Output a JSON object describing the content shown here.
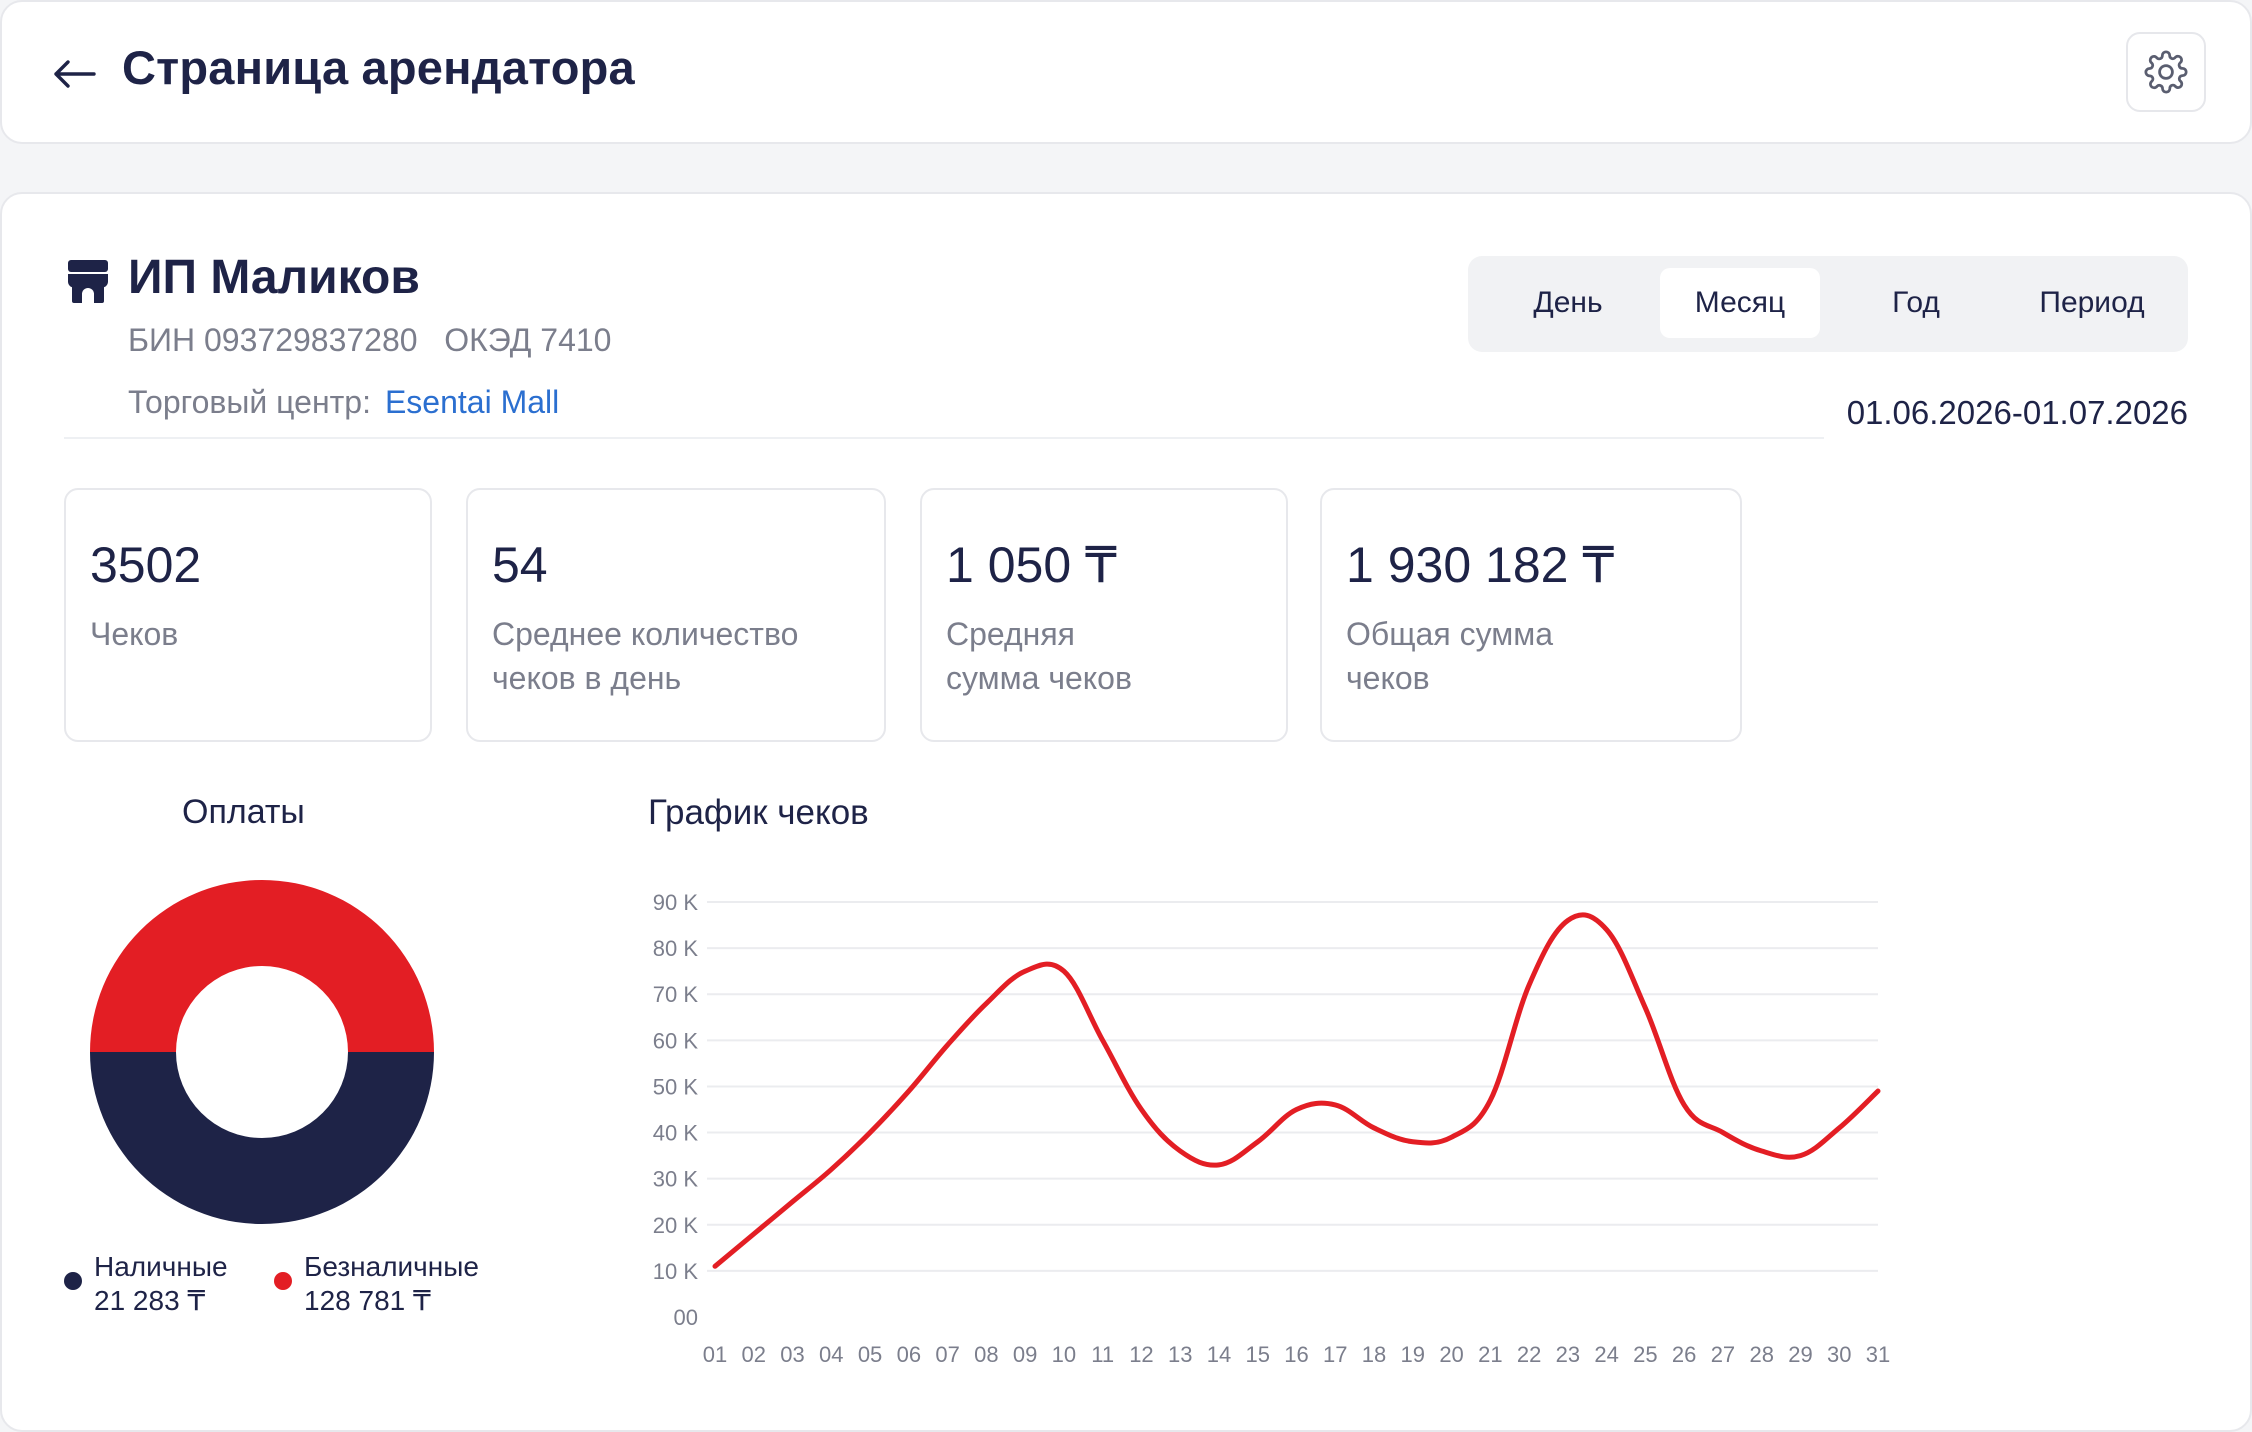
{
  "header": {
    "title": "Страница арендатора"
  },
  "tenant": {
    "name": "ИП Маликов",
    "bin": "БИН 093729837280   ОКЭД 7410",
    "mall_label": "Торговый центр:",
    "mall_link": "Esentai Mall"
  },
  "period_tabs": [
    {
      "label": "День",
      "active": false
    },
    {
      "label": "Месяц",
      "active": true
    },
    {
      "label": "Год",
      "active": false
    },
    {
      "label": "Период",
      "active": false
    }
  ],
  "date_range": "01.06.2026-01.07.2026",
  "stats": [
    {
      "value": "3502",
      "label": "Чеков"
    },
    {
      "value": "54",
      "label": "Среднее количество\nчеков в день"
    },
    {
      "value": "1 050 ₸",
      "label": "Средняя\nсумма чеков"
    },
    {
      "value": "1 930 182 ₸",
      "label": "Общая сумма\nчеков"
    }
  ],
  "colors": {
    "accent": "#e31e24",
    "navy": "#1e2347",
    "link": "#2b6fd0"
  },
  "chart_data": [
    {
      "type": "pie",
      "title": "Оплаты",
      "series": [
        {
          "name": "Наличные",
          "label": "21 283 ₸",
          "value": 0.5,
          "color": "#1e2347"
        },
        {
          "name": "Безналичные",
          "label": "128 781 ₸",
          "value": 0.5,
          "color": "#e31e24"
        }
      ]
    },
    {
      "type": "line",
      "title": "График чеков",
      "x": [
        "01",
        "02",
        "03",
        "04",
        "05",
        "06",
        "07",
        "08",
        "09",
        "10",
        "11",
        "12",
        "13",
        "14",
        "15",
        "16",
        "17",
        "18",
        "19",
        "20",
        "21",
        "22",
        "23",
        "24",
        "25",
        "26",
        "27",
        "28",
        "29",
        "30",
        "31"
      ],
      "values": [
        11000,
        18000,
        25000,
        32000,
        40000,
        49000,
        59000,
        68000,
        75000,
        75000,
        60000,
        45000,
        36000,
        33000,
        38000,
        45000,
        46000,
        41000,
        38000,
        39000,
        47000,
        72000,
        86000,
        84000,
        67000,
        46000,
        40000,
        36000,
        35000,
        41000,
        49000
      ],
      "yticks": [
        0,
        10000,
        20000,
        30000,
        40000,
        50000,
        60000,
        70000,
        80000,
        90000
      ],
      "ytick_labels": [
        "00",
        "10 K",
        "20 K",
        "30 K",
        "40 K",
        "50 K",
        "60 K",
        "70 K",
        "80 K",
        "90 K"
      ],
      "ylim": [
        0,
        90000
      ],
      "grid": true,
      "color": "#e31e24"
    }
  ]
}
